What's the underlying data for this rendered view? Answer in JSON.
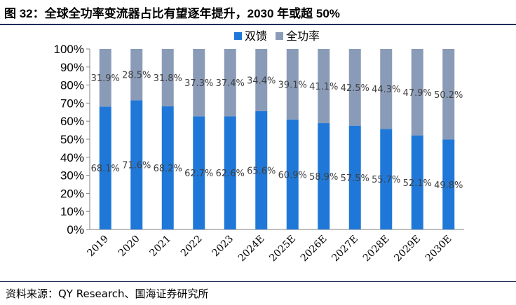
{
  "figure": {
    "title": "图 32：全球全功率变流器占比有望逐年提升，2030 年或超 50%",
    "source": "资料来源：QY Research、国海证券研究所"
  },
  "colors": {
    "series_1": "#1f78d8",
    "series_2": "#8a9bb8",
    "axis": "#808080",
    "label": "#404040",
    "rule": "#1f2d5a"
  },
  "chart_data": {
    "type": "bar",
    "stacked": true,
    "normalized": true,
    "categories": [
      "2019",
      "2020",
      "2021",
      "2022",
      "2023",
      "2024E",
      "2025E",
      "2026E",
      "2027E",
      "2028E",
      "2029E",
      "2030E"
    ],
    "series": [
      {
        "name": "双馈",
        "values": [
          68.1,
          71.6,
          68.2,
          62.7,
          62.6,
          65.6,
          60.9,
          58.9,
          57.5,
          55.7,
          52.1,
          49.8
        ]
      },
      {
        "name": "全功率",
        "values": [
          31.9,
          28.5,
          31.8,
          37.3,
          37.4,
          34.4,
          39.1,
          41.1,
          42.5,
          44.3,
          47.9,
          50.2
        ]
      }
    ],
    "data_labels": {
      "series_1": [
        "68.1%",
        "71.6%",
        "68.2%",
        "62.7%",
        "62.6%",
        "65.6%",
        "60.9%",
        "58.9%",
        "57.5%",
        "55.7%",
        "52.1%",
        "49.8%"
      ],
      "series_2": [
        "31.9%",
        "28.5%",
        "31.8%",
        "37.3%",
        "37.4%",
        "34.4%",
        "39.1%",
        "41.1%",
        "42.5%",
        "44.3%",
        "47.9%",
        "50.2%"
      ]
    },
    "y_ticks": [
      "0%",
      "10%",
      "20%",
      "30%",
      "40%",
      "50%",
      "60%",
      "70%",
      "80%",
      "90%",
      "100%"
    ],
    "ylim": [
      0,
      100
    ],
    "legend_position": "top-center",
    "grid": false
  }
}
